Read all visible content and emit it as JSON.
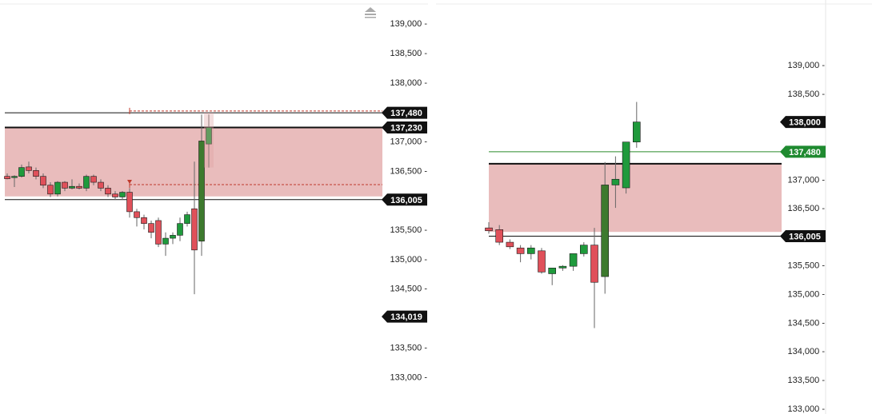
{
  "colors": {
    "bull": "#1f9a3c",
    "bull_dark": "#3d7a2e",
    "bear": "#e0505a",
    "zone_fill": "#e9bcbc",
    "level_line": "#111111",
    "green_line": "#2a8a2a",
    "marker_red": "#c0392b",
    "badge_dark": "#111111",
    "badge_green": "#1f8a30"
  },
  "chart_data": [
    {
      "type": "candlestick",
      "panel": "left",
      "ylim": [
        132800,
        139150
      ],
      "y_ticks": [
        "139,000",
        "138,500",
        "138,000",
        "137,000",
        "136,500",
        "135,500",
        "135,000",
        "134,500",
        "133,500",
        "133,000"
      ],
      "y_tick_values": [
        139000,
        138500,
        138000,
        137000,
        136500,
        135500,
        135000,
        134500,
        133500,
        133000
      ],
      "zone": {
        "top": 137230,
        "bottom": 136060
      },
      "levels": [
        {
          "value": 137480,
          "label": "137,480",
          "style": "solid",
          "badge": "dark"
        },
        {
          "value": 137230,
          "label": "137,230",
          "style": "thick",
          "badge": "dark"
        },
        {
          "value": 136005,
          "label": "136,005",
          "style": "solid",
          "badge": "dark"
        },
        {
          "value": 134019,
          "label": "134,019",
          "style": "none",
          "badge": "dark"
        }
      ],
      "dashed_levels": [
        {
          "value": 137510,
          "from_index": 17
        },
        {
          "value": 136260,
          "from_index": 17
        }
      ],
      "candles": [
        {
          "o": 136400,
          "h": 136450,
          "l": 136350,
          "c": 136360
        },
        {
          "o": 136380,
          "h": 136420,
          "l": 136220,
          "c": 136400
        },
        {
          "o": 136400,
          "h": 136600,
          "l": 136380,
          "c": 136550
        },
        {
          "o": 136560,
          "h": 136650,
          "l": 136450,
          "c": 136500
        },
        {
          "o": 136500,
          "h": 136550,
          "l": 136350,
          "c": 136400
        },
        {
          "o": 136400,
          "h": 136450,
          "l": 136200,
          "c": 136250
        },
        {
          "o": 136250,
          "h": 136300,
          "l": 136050,
          "c": 136100
        },
        {
          "o": 136100,
          "h": 136320,
          "l": 136060,
          "c": 136300
        },
        {
          "o": 136300,
          "h": 136320,
          "l": 136150,
          "c": 136200
        },
        {
          "o": 136200,
          "h": 136350,
          "l": 136180,
          "c": 136230
        },
        {
          "o": 136230,
          "h": 136280,
          "l": 136180,
          "c": 136200
        },
        {
          "o": 136200,
          "h": 136430,
          "l": 136150,
          "c": 136400
        },
        {
          "o": 136400,
          "h": 136430,
          "l": 136250,
          "c": 136300
        },
        {
          "o": 136300,
          "h": 136350,
          "l": 136150,
          "c": 136200
        },
        {
          "o": 136200,
          "h": 136250,
          "l": 136050,
          "c": 136100
        },
        {
          "o": 136100,
          "h": 136150,
          "l": 136000,
          "c": 136050
        },
        {
          "o": 136050,
          "h": 136150,
          "l": 136000,
          "c": 136130
        },
        {
          "o": 136130,
          "h": 136200,
          "l": 135700,
          "c": 135800
        },
        {
          "o": 135800,
          "h": 135850,
          "l": 135550,
          "c": 135700
        },
        {
          "o": 135700,
          "h": 135750,
          "l": 135500,
          "c": 135600
        },
        {
          "o": 135600,
          "h": 135650,
          "l": 135350,
          "c": 135450
        },
        {
          "o": 135650,
          "h": 135700,
          "l": 135200,
          "c": 135250
        },
        {
          "o": 135250,
          "h": 135450,
          "l": 135050,
          "c": 135350
        },
        {
          "o": 135350,
          "h": 135450,
          "l": 135250,
          "c": 135400
        },
        {
          "o": 135400,
          "h": 135700,
          "l": 135300,
          "c": 135600
        },
        {
          "o": 135600,
          "h": 135800,
          "l": 135550,
          "c": 135750
        },
        {
          "o": 135850,
          "h": 136650,
          "l": 134400,
          "c": 135150
        },
        {
          "o": 135300,
          "h": 137450,
          "l": 135050,
          "c": 137000
        },
        {
          "o": 136950,
          "h": 137450,
          "l": 136550,
          "c": 137230
        }
      ]
    },
    {
      "type": "candlestick",
      "panel": "right",
      "ylim": [
        132900,
        139600
      ],
      "y_ticks": [
        "139,000",
        "138,500",
        "137,000",
        "136,500",
        "135,500",
        "135,000",
        "134,500",
        "134,000",
        "133,500",
        "133,000"
      ],
      "y_tick_values": [
        139000,
        138500,
        137000,
        136500,
        135500,
        135000,
        134500,
        134000,
        133500,
        133000
      ],
      "zone": {
        "top": 137270,
        "bottom": 136080
      },
      "levels": [
        {
          "value": 138000,
          "label": "138,000",
          "style": "none",
          "badge": "dark"
        },
        {
          "value": 137480,
          "label": "137,480",
          "style": "green",
          "badge": "green"
        },
        {
          "value": 137270,
          "label": "",
          "style": "thick",
          "badge": ""
        },
        {
          "value": 136005,
          "label": "136,005",
          "style": "solid",
          "badge": "dark"
        }
      ],
      "candles": [
        {
          "o": 136150,
          "h": 136250,
          "l": 136050,
          "c": 136100
        },
        {
          "o": 136120,
          "h": 136200,
          "l": 135850,
          "c": 135900
        },
        {
          "o": 135900,
          "h": 135950,
          "l": 135780,
          "c": 135820
        },
        {
          "o": 135800,
          "h": 135850,
          "l": 135550,
          "c": 135700
        },
        {
          "o": 135700,
          "h": 135850,
          "l": 135600,
          "c": 135800
        },
        {
          "o": 135750,
          "h": 135800,
          "l": 135350,
          "c": 135380
        },
        {
          "o": 135350,
          "h": 135450,
          "l": 135150,
          "c": 135450
        },
        {
          "o": 135450,
          "h": 135500,
          "l": 135400,
          "c": 135480
        },
        {
          "o": 135480,
          "h": 135700,
          "l": 135400,
          "c": 135700
        },
        {
          "o": 135700,
          "h": 135900,
          "l": 135650,
          "c": 135850
        },
        {
          "o": 135850,
          "h": 136150,
          "l": 134400,
          "c": 135200
        },
        {
          "o": 135300,
          "h": 137300,
          "l": 135000,
          "c": 136900
        },
        {
          "o": 136900,
          "h": 137400,
          "l": 136500,
          "c": 137000
        },
        {
          "o": 136850,
          "h": 137650,
          "l": 136750,
          "c": 137650
        },
        {
          "o": 137650,
          "h": 138350,
          "l": 137550,
          "c": 138000
        }
      ]
    }
  ]
}
